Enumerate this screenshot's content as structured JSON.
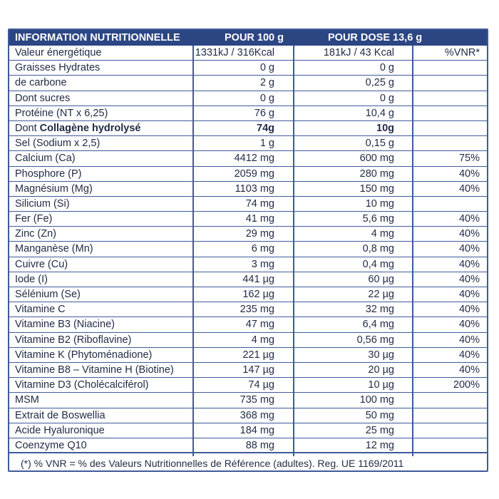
{
  "header": {
    "title": "INFORMATION NUTRITIONNELLE",
    "col_100g": "POUR 100 g",
    "col_dose": "POUR DOSE 13,6 g"
  },
  "rows": [
    {
      "name": "Valeur énergétique",
      "per100": "1331kJ / 316Kcal",
      "dose": "181kJ / 43 Kcal",
      "vnr": "%VNR*"
    },
    {
      "name": "Graisses Hydrates",
      "per100": "0 g",
      "dose": "0 g",
      "vnr": ""
    },
    {
      "name": "de carbone",
      "per100": "2 g",
      "dose": "0,25 g",
      "vnr": ""
    },
    {
      "name": "Dont sucres",
      "per100": "0 g",
      "dose": "0 g",
      "vnr": ""
    },
    {
      "name": "Protéine (NT x 6,25)",
      "per100": "76 g",
      "dose": "10,4 g",
      "vnr": ""
    },
    {
      "name_prefix": "Dont ",
      "name": "Collagène hydrolysé",
      "per100": "74g",
      "dose": "10g",
      "vnr": "",
      "bold": true
    },
    {
      "name": "Sel (Sodium x 2,5)",
      "per100": "1 g",
      "dose": "0,15 g",
      "vnr": ""
    },
    {
      "name": "Calcium (Ca)",
      "per100": "4412 mg",
      "dose": "600 mg",
      "vnr": "75%"
    },
    {
      "name": "Phosphore (P)",
      "per100": "2059 mg",
      "dose": "280 mg",
      "vnr": "40%"
    },
    {
      "name": "Magnésium (Mg)",
      "per100": "1103 mg",
      "dose": "150 mg",
      "vnr": "40%"
    },
    {
      "name": "Silicium (Si)",
      "per100": "74 mg",
      "dose": "10 mg",
      "vnr": ""
    },
    {
      "name": "Fer (Fe)",
      "per100": "41 mg",
      "dose": "5,6 mg",
      "vnr": "40%"
    },
    {
      "name": "Zinc (Zn)",
      "per100": "29 mg",
      "dose": "4 mg",
      "vnr": "40%"
    },
    {
      "name": "Manganèse (Mn)",
      "per100": "6 mg",
      "dose": "0,8 mg",
      "vnr": "40%"
    },
    {
      "name": "Cuivre (Cu)",
      "per100": "3 mg",
      "dose": "0,4 mg",
      "vnr": "40%"
    },
    {
      "name": "Iode (I)",
      "per100": "441 µg",
      "dose": "60 µg",
      "vnr": "40%"
    },
    {
      "name": "Sélénium (Se)",
      "per100": "162 µg",
      "dose": "22 µg",
      "vnr": "40%"
    },
    {
      "name": "Vitamine C",
      "per100": "235 mg",
      "dose": "32 mg",
      "vnr": "40%"
    },
    {
      "name": "Vitamine B3 (Niacine)",
      "per100": "47 mg",
      "dose": "6,4 mg",
      "vnr": "40%"
    },
    {
      "name": "Vitamine B2 (Riboflavine)",
      "per100": "4 mg",
      "dose": "0,56 mg",
      "vnr": "40%"
    },
    {
      "name": "Vitamine K (Phytoménadione)",
      "per100": "221 µg",
      "dose": "30 µg",
      "vnr": "40%"
    },
    {
      "name": "Vitamine B8 – Vitamine H (Biotine)",
      "per100": "147 µg",
      "dose": "20 µg",
      "vnr": "40%"
    },
    {
      "name": "Vitamine D3 (Cholécalciférol)",
      "per100": "74 µg",
      "dose": "10 µg",
      "vnr": "200%"
    },
    {
      "name": "MSM",
      "per100": "735 mg",
      "dose": "100 mg",
      "vnr": ""
    },
    {
      "name": "Extrait de Boswellia",
      "per100": "368 mg",
      "dose": "50 mg",
      "vnr": ""
    },
    {
      "name": "Acide Hyaluronique",
      "per100": "184 mg",
      "dose": "25 mg",
      "vnr": ""
    },
    {
      "name": "Coenzyme Q10",
      "per100": "88 mg",
      "dose": "12 mg",
      "vnr": ""
    }
  ],
  "footer": "(*) % VNR = % des Valeurs Nutritionnelles de Référence (adultes). Reg. UE 1169/2011",
  "colors": {
    "header_bg": "#2c4684",
    "border": "#3f5a9b",
    "text": "#1f2a44"
  }
}
